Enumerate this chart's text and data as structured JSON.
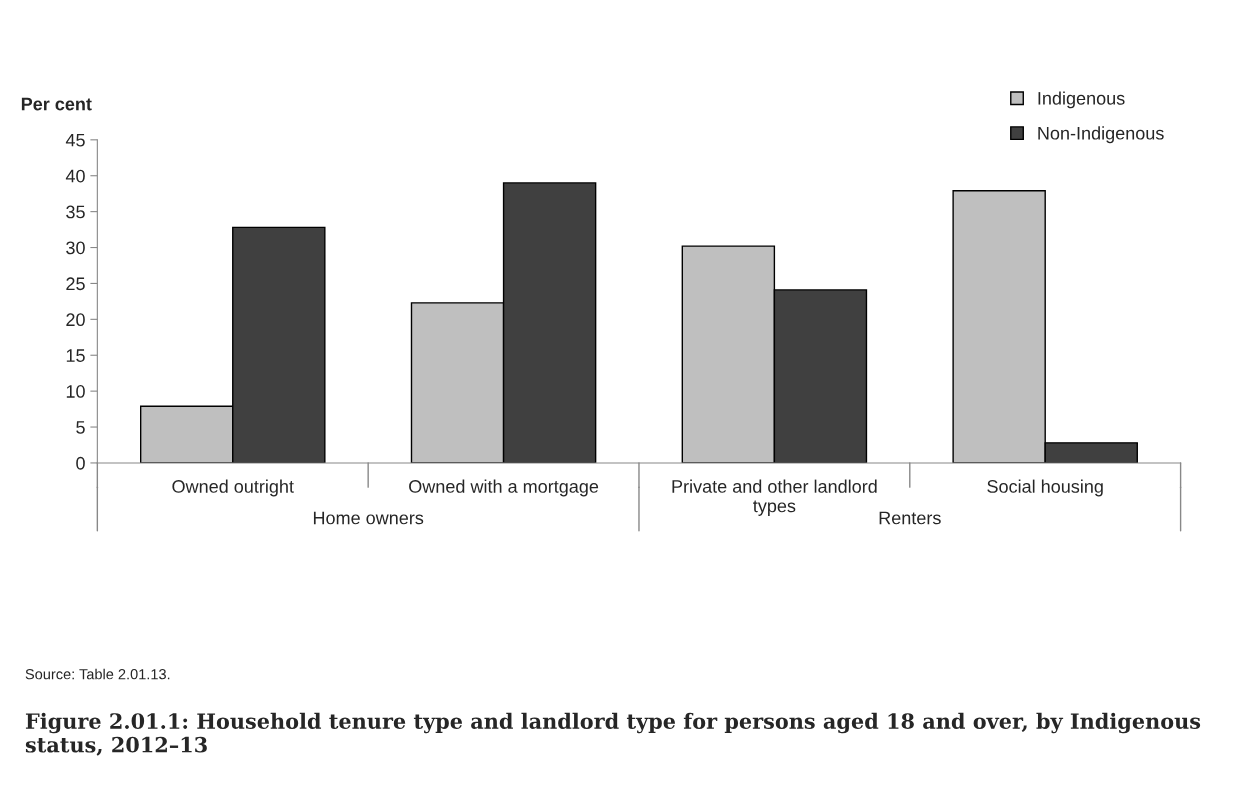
{
  "chart_data": {
    "type": "bar",
    "title": "Figure 2.01.1: Household tenure type and landlord type for persons aged 18 and over, by Indigenous status, 2012–13",
    "ylabel": "Per cent",
    "categories": [
      "Owned outright",
      "Owned with a mortgage",
      "Private and other landlord\ntypes",
      "Social housing"
    ],
    "series": [
      {
        "name": "Indigenous",
        "color": "#bfbfbf",
        "values": [
          7.9,
          22.3,
          30.2,
          37.9
        ]
      },
      {
        "name": "Non-Indigenous",
        "color": "#404040",
        "values": [
          32.8,
          39.0,
          24.1,
          2.8
        ]
      }
    ],
    "ylim": [
      0,
      45
    ],
    "yticks": [
      0,
      5,
      10,
      15,
      20,
      25,
      30,
      35,
      40,
      45
    ],
    "grid": false,
    "legend": "top right",
    "annotations": [
      "Home owners",
      "Renters",
      "Source: Table 2.01.13."
    ]
  }
}
